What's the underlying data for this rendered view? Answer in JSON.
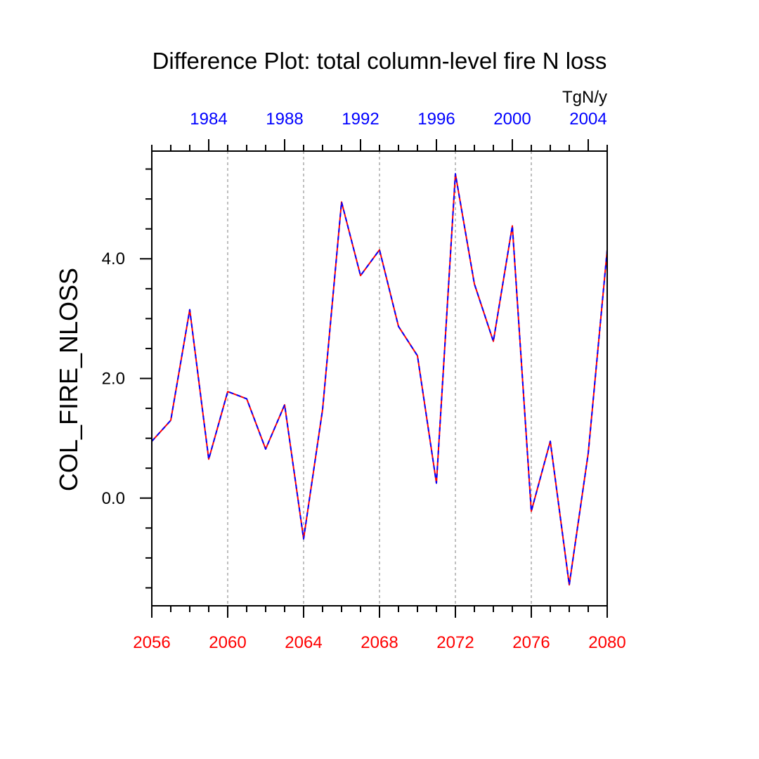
{
  "chart_data": {
    "type": "line",
    "title": "Difference Plot: total column-level fire N loss",
    "ylabel": "COL_FIRE_NLOSS",
    "units": "TgN/y",
    "xlim": [
      2056,
      2080
    ],
    "ylim": [
      -1.8,
      5.8
    ],
    "x": [
      2056,
      2057,
      2058,
      2059,
      2060,
      2061,
      2062,
      2063,
      2064,
      2065,
      2066,
      2067,
      2068,
      2069,
      2070,
      2071,
      2072,
      2073,
      2074,
      2075,
      2076,
      2077,
      2078,
      2079,
      2080
    ],
    "series": [
      {
        "values": [
          0.95,
          1.3,
          3.15,
          0.65,
          1.78,
          1.66,
          0.82,
          1.56,
          -0.68,
          1.48,
          4.95,
          3.72,
          4.15,
          2.87,
          2.38,
          0.25,
          5.42,
          3.58,
          2.62,
          4.55,
          -0.22,
          0.95,
          -1.45,
          0.75,
          4.15
        ],
        "colors": [
          "#ff0000",
          "#0000ff"
        ],
        "style": "dashed overlay"
      }
    ],
    "bottom_axis": {
      "ticks": [
        2056,
        2060,
        2064,
        2068,
        2072,
        2076,
        2080
      ],
      "labels": [
        "2056",
        "2060",
        "2064",
        "2068",
        "2072",
        "2076",
        "2080"
      ],
      "color": "#ff0000"
    },
    "top_axis": {
      "ticks": [
        2059,
        2063,
        2067,
        2071,
        2075,
        2079
      ],
      "labels": [
        "1984",
        "1988",
        "1992",
        "1996",
        "2000",
        "2004"
      ],
      "color": "#0000ff"
    },
    "y_ticks": [
      0.0,
      2.0,
      4.0
    ],
    "y_tick_labels": [
      "0.0",
      "2.0",
      "4.0"
    ],
    "vertical_grid": [
      2060,
      2064,
      2068,
      2072,
      2076
    ],
    "grid_color": "#aaaaaa"
  }
}
